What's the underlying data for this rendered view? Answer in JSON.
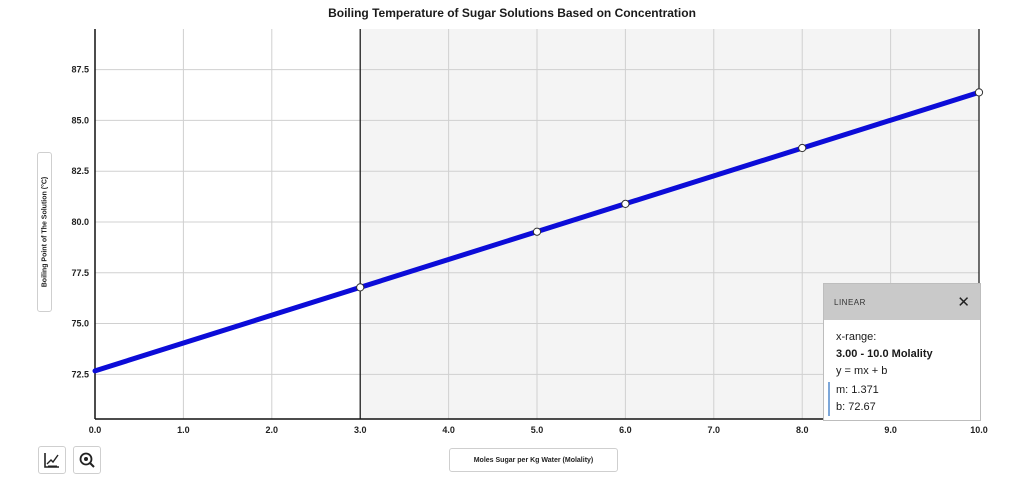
{
  "chart_data": {
    "type": "line",
    "title": "Boiling Temperature of Sugar Solutions Based on Concentration",
    "xlabel": "Moles Sugar per Kg Water (Molality)",
    "ylabel": "Boiling Point of The Solution (°C)",
    "xlim": [
      0,
      10
    ],
    "ylim": [
      70.3,
      89.5
    ],
    "x_ticks": [
      "0.0",
      "1.0",
      "2.0",
      "3.0",
      "4.0",
      "5.0",
      "6.0",
      "7.0",
      "8.0",
      "9.0",
      "10.0"
    ],
    "y_ticks": [
      "72.5",
      "75.0",
      "77.5",
      "80.0",
      "82.5",
      "85.0",
      "87.5"
    ],
    "grid": true,
    "selected_range": [
      3.0,
      10.0
    ],
    "line_color": "#0c0cd8",
    "series": [
      {
        "x": [
          0,
          10
        ],
        "y": [
          72.67,
          86.38
        ]
      }
    ],
    "points": [
      {
        "x": 3.0,
        "y": 76.78
      },
      {
        "x": 5.0,
        "y": 79.52
      },
      {
        "x": 6.0,
        "y": 80.89
      },
      {
        "x": 8.0,
        "y": 83.64
      },
      {
        "x": 10.0,
        "y": 86.38
      }
    ]
  },
  "fit_panel": {
    "name": "LINEAR",
    "range_label": "x-range:",
    "range_value": "3.00 - 10.0 Molality",
    "equation": "y = mx + b",
    "m_text": "m: 1.371",
    "b_text": "b: 72.67"
  },
  "tools": {
    "graph_icon": "line-graph-icon",
    "zoom_icon": "zoom-icon"
  }
}
